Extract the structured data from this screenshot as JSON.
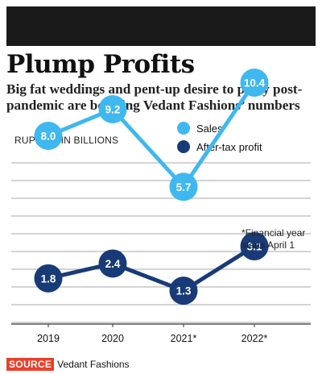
{
  "header": {
    "title": "Plump Profits",
    "subtitle": "Big fat weddings and pent-up desire to party post-pandemic are boosting Vedant Fashions’ numbers",
    "units": "RUPEES; IN BILLIONS"
  },
  "note": "*Financial year starts April 1",
  "source": {
    "tag": "SOURCE",
    "name": "Vedant Fashions"
  },
  "colors": {
    "sales": "#3fb7ef",
    "profit": "#183b78",
    "grid": "#a8a8a8",
    "accent": "#e8402a"
  },
  "chart_data": {
    "type": "line",
    "categories": [
      "2019",
      "2020",
      "2021*",
      "2022*"
    ],
    "series": [
      {
        "name": "Sales",
        "values": [
          8.0,
          9.2,
          5.7,
          10.4
        ]
      },
      {
        "name": "After-tax profit",
        "values": [
          1.8,
          2.4,
          1.3,
          3.1
        ]
      }
    ],
    "grid": true,
    "legend_position": "top-right"
  }
}
